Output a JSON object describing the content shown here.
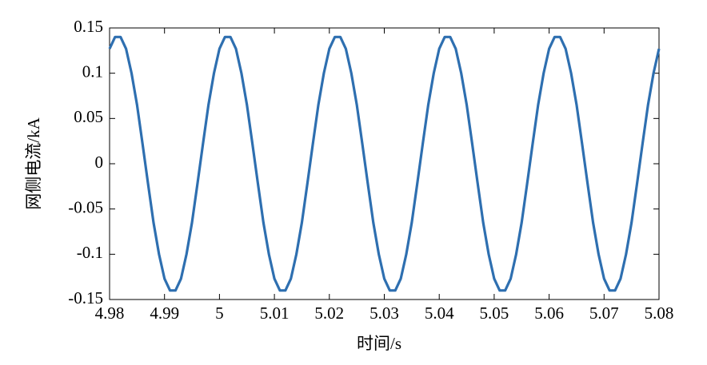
{
  "chart_data": {
    "type": "line",
    "xlabel": "时间/s",
    "ylabel": "网侧电流/kA",
    "xlim": [
      4.98,
      5.08
    ],
    "ylim": [
      -0.15,
      0.15
    ],
    "xticks": [
      4.98,
      4.99,
      5,
      5.01,
      5.02,
      5.03,
      5.04,
      5.05,
      5.06,
      5.07,
      5.08
    ],
    "yticks": [
      -0.15,
      -0.1,
      -0.05,
      0,
      0.05,
      0.1,
      0.15
    ],
    "grid": false,
    "x": [
      4.98,
      4.981,
      4.982,
      4.983,
      4.984,
      4.985,
      4.986,
      4.987,
      4.988,
      4.989,
      4.99,
      4.991,
      4.992,
      4.993,
      4.994,
      4.995,
      4.996,
      4.997,
      4.998,
      4.999,
      5,
      5.001,
      5.002,
      5.003,
      5.004,
      5.005,
      5.006,
      5.007,
      5.008,
      5.009,
      5.01,
      5.011,
      5.012,
      5.013,
      5.014,
      5.015,
      5.016,
      5.017,
      5.018,
      5.019,
      5.02,
      5.021,
      5.022,
      5.023,
      5.024,
      5.025,
      5.026,
      5.027,
      5.028,
      5.029,
      5.03,
      5.031,
      5.032,
      5.033,
      5.034,
      5.035,
      5.036,
      5.037,
      5.038,
      5.039,
      5.04,
      5.041,
      5.042,
      5.043,
      5.044,
      5.045,
      5.046,
      5.047,
      5.048,
      5.049,
      5.05,
      5.051,
      5.052,
      5.053,
      5.054,
      5.055,
      5.056,
      5.057,
      5.058,
      5.059,
      5.06,
      5.061,
      5.062,
      5.063,
      5.064,
      5.065,
      5.066,
      5.067,
      5.068,
      5.069,
      5.07,
      5.071,
      5.072,
      5.073,
      5.074,
      5.075,
      5.076,
      5.077,
      5.078,
      5.079,
      5.08
    ],
    "series": [
      {
        "name": "网侧电流",
        "color": "#2e6fb0",
        "values": [
          0.127,
          0.14,
          0.14,
          0.127,
          0.1,
          0.065,
          0.022,
          -0.022,
          -0.065,
          -0.1,
          -0.127,
          -0.14,
          -0.14,
          -0.127,
          -0.1,
          -0.065,
          -0.022,
          0.022,
          0.065,
          0.1,
          0.127,
          0.14,
          0.14,
          0.127,
          0.1,
          0.065,
          0.022,
          -0.022,
          -0.065,
          -0.1,
          -0.127,
          -0.14,
          -0.14,
          -0.127,
          -0.1,
          -0.065,
          -0.022,
          0.022,
          0.065,
          0.1,
          0.127,
          0.14,
          0.14,
          0.127,
          0.1,
          0.065,
          0.022,
          -0.022,
          -0.065,
          -0.1,
          -0.127,
          -0.14,
          -0.14,
          -0.127,
          -0.1,
          -0.065,
          -0.022,
          0.022,
          0.065,
          0.1,
          0.127,
          0.14,
          0.14,
          0.127,
          0.1,
          0.065,
          0.022,
          -0.022,
          -0.065,
          -0.1,
          -0.127,
          -0.14,
          -0.14,
          -0.127,
          -0.1,
          -0.065,
          -0.022,
          0.022,
          0.065,
          0.1,
          0.127,
          0.14,
          0.14,
          0.127,
          0.1,
          0.065,
          0.022,
          -0.022,
          -0.065,
          -0.1,
          -0.127,
          -0.14,
          -0.14,
          -0.127,
          -0.1,
          -0.065,
          -0.022,
          0.022,
          0.065,
          0.1,
          0.127
        ]
      }
    ]
  }
}
